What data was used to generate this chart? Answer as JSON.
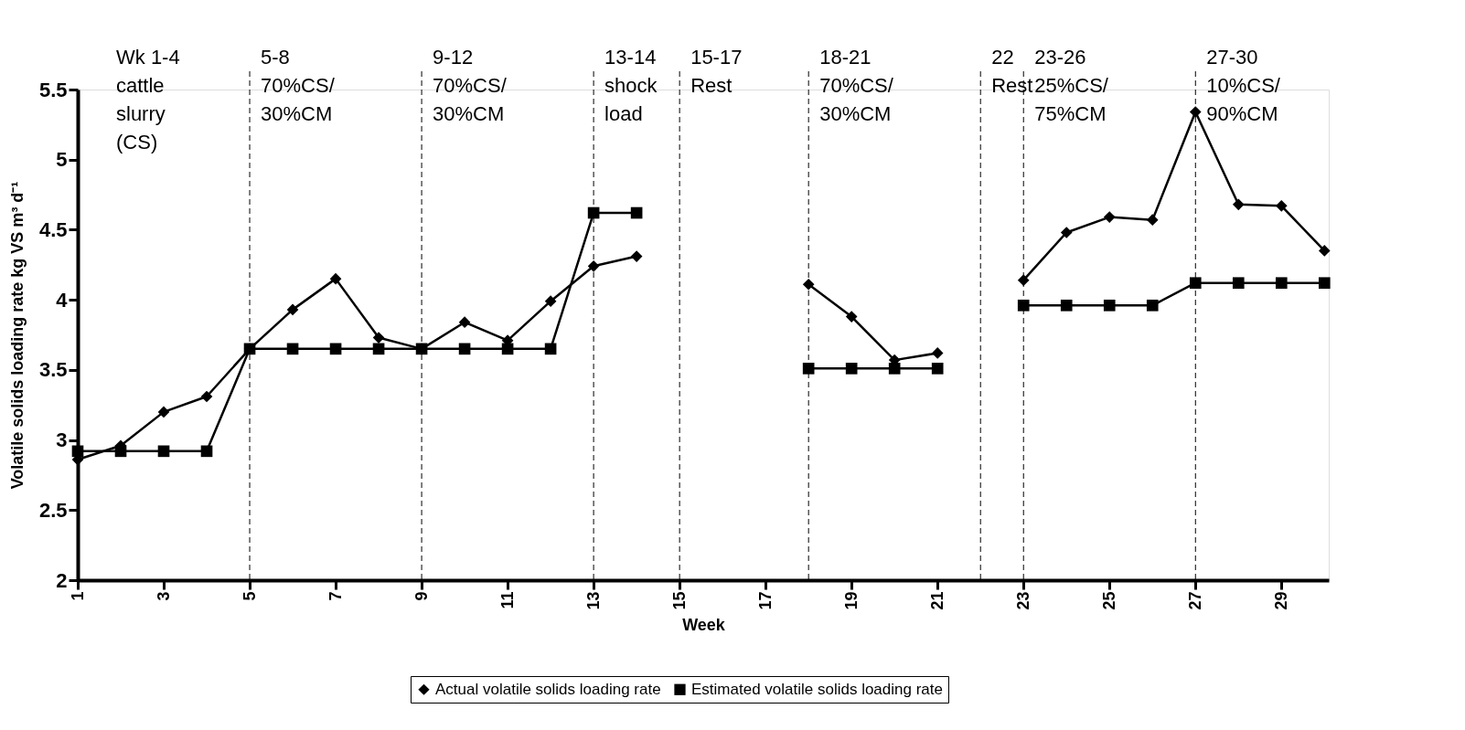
{
  "chart_data": {
    "type": "line",
    "xlabel": "Week",
    "ylabel": "Volatile solids loading rate kg VS m³ d⁻¹",
    "x": [
      1,
      2,
      3,
      4,
      5,
      6,
      7,
      8,
      9,
      10,
      11,
      12,
      13,
      14,
      15,
      16,
      17,
      18,
      19,
      20,
      21,
      22,
      23,
      24,
      25,
      26,
      27,
      28,
      29,
      30
    ],
    "series": [
      {
        "name": "Actual volatile solids loading rate",
        "color": "#000000",
        "marker": "diamond",
        "values": [
          2.86,
          2.96,
          3.2,
          3.31,
          3.65,
          3.93,
          4.15,
          3.73,
          3.65,
          3.84,
          3.71,
          3.99,
          4.24,
          4.31,
          null,
          null,
          null,
          4.11,
          3.88,
          3.57,
          3.62,
          null,
          4.14,
          4.48,
          4.59,
          4.57,
          5.34,
          4.68,
          4.67,
          4.35
        ]
      },
      {
        "name": "Estimated volatile solids loading rate",
        "color": "#000000",
        "marker": "square",
        "values": [
          2.92,
          2.92,
          2.92,
          2.92,
          3.65,
          3.65,
          3.65,
          3.65,
          3.65,
          3.65,
          3.65,
          3.65,
          4.62,
          4.62,
          null,
          null,
          null,
          3.51,
          3.51,
          3.51,
          3.51,
          null,
          3.96,
          3.96,
          3.96,
          3.96,
          4.12,
          4.12,
          4.12,
          4.12
        ]
      }
    ],
    "xlim": [
      1,
      30.1
    ],
    "xticks": [
      1,
      3,
      5,
      7,
      9,
      11,
      13,
      15,
      17,
      19,
      21,
      23,
      25,
      27,
      29
    ],
    "ylim": [
      2,
      5.5
    ],
    "yticks": [
      2,
      2.5,
      3,
      3.5,
      4,
      4.5,
      5,
      5.5
    ],
    "grid": false,
    "legend": "bottom",
    "line_style": "solid",
    "ref_lines": [
      {
        "axis": "x",
        "value": 5,
        "label": "5-8\n70%CS/\n30%CM",
        "line_style": "dashed"
      },
      {
        "axis": "x",
        "value": 9,
        "label": "9-12\n70%CS/\n30%CM",
        "line_style": "dashed"
      },
      {
        "axis": "x",
        "value": 13,
        "label": "13-14\nshock\nload",
        "line_style": "dashed"
      },
      {
        "axis": "x",
        "value": 15,
        "label": "15-17\nRest",
        "line_style": "dashed"
      },
      {
        "axis": "x",
        "value": 18,
        "label": "18-21\n70%CS/\n30%CM",
        "line_style": "dashed"
      },
      {
        "axis": "x",
        "value": 22,
        "label": "22\nRest",
        "line_style": "dashed"
      },
      {
        "axis": "x",
        "value": 23,
        "label": "23-26\n25%CS/\n75%CM",
        "line_style": "dashed"
      },
      {
        "axis": "x",
        "value": 27,
        "label": "27-30\n10%CS/\n90%CM",
        "line_style": "dashed"
      }
    ],
    "annotations": [
      "Wk 1-4\ncattle\nslurry\n(CS)"
    ]
  }
}
